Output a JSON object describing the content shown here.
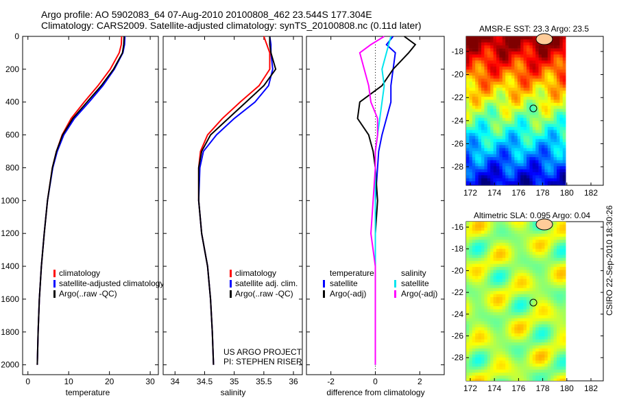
{
  "title_line1": "Argo profile: AO 5902083_64 07-Aug-2010 20100808_462 23.544S 177.304E",
  "title_line2": "Climatology: CARS2009. Satellite-adjusted climatology: synTS_20100808.nc (0.11d later)",
  "side_stamp": "CSIRO 22-Sep-2010 18:30:26",
  "project_line1": "US ARGO PROJECT",
  "project_line2": "PI: STEPHEN RISER",
  "colors": {
    "climatology": "#ff0000",
    "satellite": "#0000ff",
    "argo": "#000000",
    "sal_satellite": "#00e5ee",
    "sal_argo": "#ff00ff"
  },
  "chart_data": [
    {
      "type": "line",
      "xlabel": "temperature",
      "ylabel": "",
      "xlim": [
        -1.3,
        32
      ],
      "ylim": [
        2060,
        0
      ],
      "xticks": [
        "0",
        "10",
        "20",
        "30"
      ],
      "yticks": [
        "0",
        "200",
        "400",
        "600",
        "800",
        "1000",
        "1200",
        "1400",
        "1600",
        "1800",
        "2000"
      ],
      "legend": [
        "climatology",
        "satellite-adjusted climatology",
        "Argo(..raw -QC)"
      ],
      "legend_placement": "lower-right",
      "depth": [
        0,
        50,
        100,
        200,
        300,
        400,
        500,
        600,
        700,
        800,
        1000,
        1200,
        1400,
        1600,
        1800,
        2000
      ],
      "series": [
        {
          "name": "climatology",
          "values": [
            23,
            22.9,
            22.4,
            20.2,
            17.2,
            13.8,
            10.6,
            8.4,
            7,
            6,
            4.8,
            4,
            3.3,
            2.8,
            2.5,
            2.3
          ]
        },
        {
          "name": "satellite-adjusted climatology",
          "values": [
            23.8,
            23.7,
            23.3,
            21.2,
            18.4,
            15,
            11.4,
            8.8,
            7.2,
            6.1,
            4.8,
            4,
            3.3,
            2.8,
            2.5,
            2.3
          ]
        },
        {
          "name": "Argo(..raw -QC)",
          "values": [
            23.6,
            23.5,
            23.2,
            21,
            18,
            14.5,
            11,
            8.5,
            7,
            6,
            4.8,
            4,
            3.3,
            2.8,
            2.5,
            2.3
          ]
        }
      ]
    },
    {
      "type": "line",
      "xlabel": "salinity",
      "xlim": [
        33.8,
        36.15
      ],
      "ylim": [
        2060,
        0
      ],
      "xticks": [
        "34",
        "34.5",
        "35",
        "35.5",
        "36"
      ],
      "legend": [
        "climatology",
        "satellite adj. clim.",
        "Argo(..raw -QC)"
      ],
      "legend_placement": "lower-right",
      "depth": [
        0,
        50,
        100,
        200,
        300,
        400,
        500,
        600,
        700,
        800,
        1000,
        1200,
        1400,
        1600,
        1800,
        2000
      ],
      "series": [
        {
          "name": "climatology",
          "values": [
            35.5,
            35.55,
            35.6,
            35.6,
            35.42,
            35.1,
            34.8,
            34.55,
            34.43,
            34.4,
            34.4,
            34.45,
            34.55,
            34.6,
            34.63,
            34.65
          ]
        },
        {
          "name": "satellite adj. clim.",
          "values": [
            35.6,
            35.62,
            35.62,
            35.65,
            35.58,
            35.35,
            35.0,
            34.7,
            34.48,
            34.42,
            34.4,
            34.45,
            34.55,
            34.6,
            34.63,
            34.65
          ]
        },
        {
          "name": "Argo(..raw -QC)",
          "values": [
            35.6,
            35.6,
            35.62,
            35.7,
            35.5,
            35.2,
            34.9,
            34.6,
            34.45,
            34.4,
            34.4,
            34.45,
            34.55,
            34.6,
            34.63,
            34.65
          ]
        }
      ]
    },
    {
      "type": "line",
      "xlabel": "difference from climatology",
      "xlim": [
        -3.1,
        3.1
      ],
      "ylim": [
        2060,
        0
      ],
      "xticks": [
        "-2",
        "0",
        "2"
      ],
      "legend_titles": [
        "temperature",
        "salinity"
      ],
      "legend": [
        "satellite",
        "Argo(-adj)",
        "satellite",
        "Argo(-adj)"
      ],
      "legend_placement": "lower-center",
      "depth": [
        0,
        50,
        100,
        200,
        300,
        400,
        500,
        600,
        700,
        800,
        1000,
        1200,
        1400,
        1600,
        1800,
        2000
      ],
      "series": [
        {
          "name": "temperature satellite",
          "values": [
            0.8,
            0.5,
            0.9,
            0.8,
            0.7,
            0.7,
            0.5,
            0.3,
            0.15,
            0.1,
            0,
            0,
            0,
            0,
            0,
            0
          ]
        },
        {
          "name": "temperature Argo(-adj)",
          "values": [
            1.3,
            1.8,
            1.5,
            0.8,
            0.3,
            -0.7,
            -0.8,
            -0.3,
            -0.1,
            0,
            0.1,
            0,
            0,
            0,
            0,
            0
          ]
        },
        {
          "name": "salinity satellite",
          "values": [
            0.7,
            0.6,
            0.5,
            0.3,
            0.4,
            0.3,
            0.2,
            0.1,
            0,
            0,
            0,
            0,
            0,
            0,
            0,
            0
          ]
        },
        {
          "name": "salinity Argo(-adj)",
          "values": [
            0.4,
            -0.2,
            -0.7,
            -0.5,
            -0.3,
            -0.2,
            0.1,
            0.1,
            0,
            0,
            -0.1,
            -0.2,
            0,
            0,
            0,
            0
          ]
        }
      ]
    },
    {
      "type": "heatmap",
      "title": "AMSR-E SST: 23.3 Argo: 23.5",
      "xticks": [
        "172",
        "174",
        "176",
        "178",
        "180",
        "182"
      ],
      "yticks": [
        "-18",
        "-20",
        "-22",
        "-24",
        "-26",
        "-28"
      ]
    },
    {
      "type": "heatmap",
      "title": "Altimetric SLA: 0.095 Argo: 0.04",
      "xticks": [
        "172",
        "174",
        "176",
        "178",
        "180",
        "182"
      ],
      "yticks": [
        "-16",
        "-18",
        "-20",
        "-22",
        "-24",
        "-26",
        "-28"
      ]
    }
  ]
}
